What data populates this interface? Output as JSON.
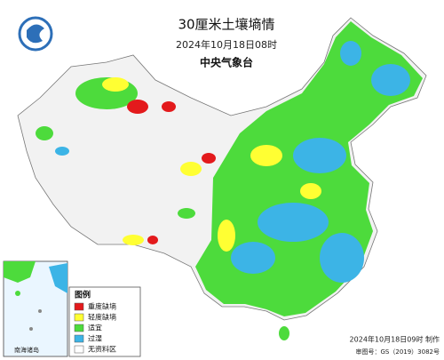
{
  "header": {
    "title": "30厘米土壤墒情",
    "subtitle": "2024年10月18日08时",
    "agency": "中央气象台"
  },
  "legend": {
    "title": "图例",
    "items": [
      {
        "label": "重度缺墒",
        "color": "#e31a1c"
      },
      {
        "label": "轻度缺墒",
        "color": "#ffff33"
      },
      {
        "label": "适宜",
        "color": "#4ddb3c"
      },
      {
        "label": "过湿",
        "color": "#3cb4e6"
      },
      {
        "label": "无资料区",
        "color": "#ffffff"
      }
    ]
  },
  "inset": {
    "label": "南海诸岛"
  },
  "footer": {
    "made": "2024年10月18日09时 制作",
    "approval": "审图号：GS（2019）3082号"
  }
}
